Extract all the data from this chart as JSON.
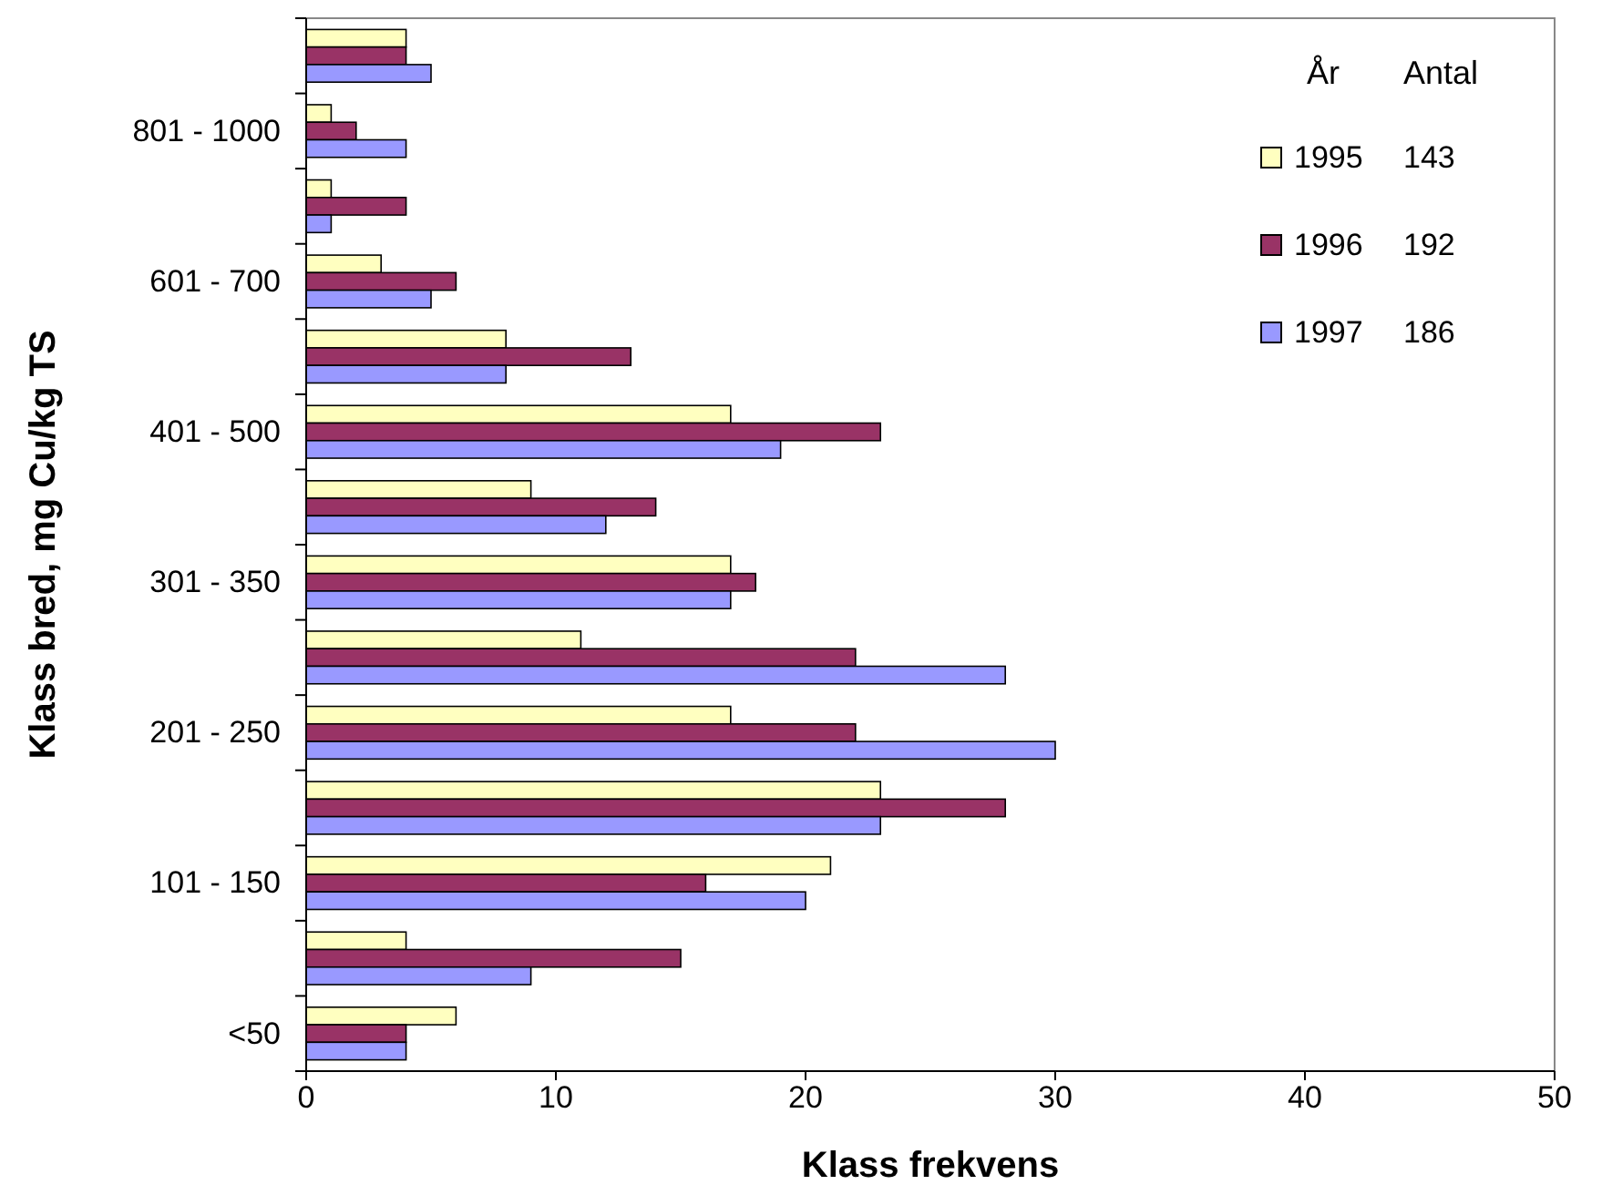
{
  "chart_data": {
    "type": "bar",
    "orientation": "horizontal",
    "xlabel": "Klass frekvens",
    "ylabel": "Klass bred, mg Cu/kg TS",
    "categories": [
      null,
      "801 - 1000",
      null,
      "601 - 700",
      null,
      "401 - 500",
      null,
      "301 - 350",
      null,
      "201 - 250",
      null,
      "101 - 150",
      null,
      "<50"
    ],
    "series": [
      {
        "name": "1995",
        "color": "#ffffc0",
        "values": [
          4,
          1,
          1,
          3,
          8,
          17,
          9,
          17,
          11,
          17,
          23,
          21,
          4,
          6
        ]
      },
      {
        "name": "1996",
        "color": "#993366",
        "values": [
          4,
          2,
          4,
          6,
          13,
          23,
          14,
          18,
          22,
          22,
          28,
          16,
          15,
          4
        ]
      },
      {
        "name": "1997",
        "color": "#9999ff",
        "values": [
          5,
          4,
          1,
          5,
          8,
          19,
          12,
          17,
          28,
          30,
          23,
          20,
          9,
          4
        ]
      }
    ],
    "xlim": [
      0,
      50
    ],
    "xticks": [
      0,
      10,
      20,
      30,
      40,
      50
    ],
    "grid": false,
    "legend": "top right",
    "legend_title": "År",
    "annotations": [
      "Antal",
      "143",
      "192",
      "186"
    ]
  }
}
